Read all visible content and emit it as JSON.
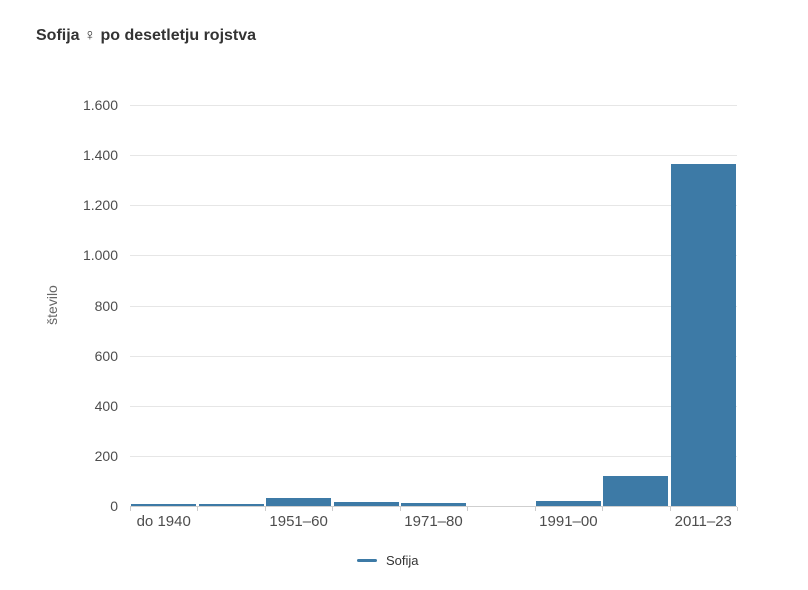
{
  "title": "Sofija ♀ po desetletju rojstva",
  "legend": {
    "items": [
      {
        "label": "Sofija",
        "color": "#3d7aa6"
      }
    ]
  },
  "chart_data": {
    "type": "bar",
    "title": "Sofija ♀ po desetletju rojstva",
    "xlabel": "",
    "ylabel": "število",
    "x_tick_labels": [
      "do 1940",
      "",
      "1951–60",
      "",
      "1971–80",
      "",
      "1991–00",
      "",
      "2011–23"
    ],
    "values": [
      10,
      10,
      30,
      18,
      12,
      0,
      22,
      120,
      1365
    ],
    "series_name": "Sofija",
    "ylim": [
      0,
      1600
    ],
    "y_ticks": [
      0,
      200,
      400,
      600,
      800,
      1000,
      1200,
      1400,
      1600
    ],
    "y_tick_labels": [
      "0",
      "200",
      "400",
      "600",
      "800",
      "1.000",
      "1.200",
      "1.400",
      "1.600"
    ],
    "bar_color": "#3d7aa6",
    "grid": true,
    "background_color": "#ffffff",
    "legend_position": "bottom-center"
  }
}
